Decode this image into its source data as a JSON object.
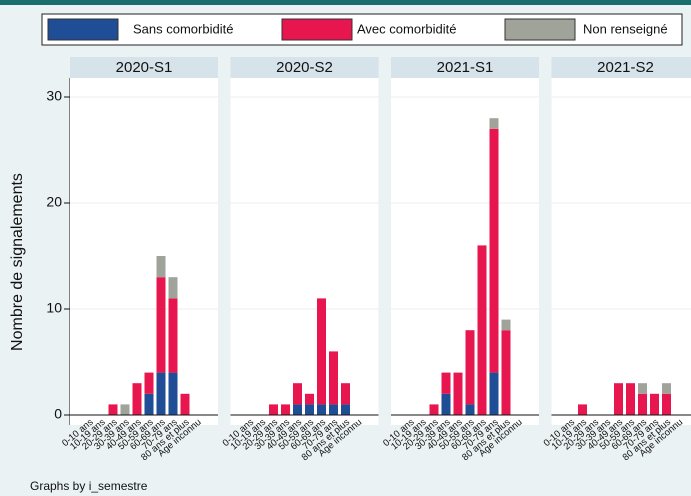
{
  "chart_data": {
    "type": "bar",
    "stacked": true,
    "ylabel": "Nombre de signalements",
    "footnote": "Graphs by i_semestre",
    "categories": [
      "0-10 ans",
      "10-19 ans",
      "20-29 ans",
      "30-39 ans",
      "40-49 ans",
      "50-59 ans",
      "60-69 ans",
      "70-79 ans",
      "80 ans et plus",
      "Age inconnu"
    ],
    "legend": [
      {
        "name": "Sans comorbidité",
        "color": "#1f4e96"
      },
      {
        "name": "Avec comorbidité",
        "color": "#e8164e"
      },
      {
        "name": "Non renseigné",
        "color": "#a0a39a"
      }
    ],
    "ylim": [
      0,
      30
    ],
    "yticks": [
      0,
      10,
      20,
      30
    ],
    "grid": true,
    "panels": [
      {
        "title": "2020-S1",
        "series": [
          [
            0,
            0,
            0,
            0,
            0,
            2,
            4,
            4,
            0,
            0
          ],
          [
            0,
            0,
            1,
            0,
            3,
            2,
            9,
            7,
            2,
            0
          ],
          [
            0,
            0,
            0,
            1,
            0,
            0,
            2,
            2,
            0,
            0
          ]
        ]
      },
      {
        "title": "2020-S2",
        "series": [
          [
            0,
            0,
            0,
            0,
            1,
            1,
            1,
            1,
            1,
            0
          ],
          [
            0,
            0,
            1,
            1,
            2,
            1,
            10,
            5,
            2,
            0
          ],
          [
            0,
            0,
            0,
            0,
            0,
            0,
            0,
            0,
            0,
            0
          ]
        ]
      },
      {
        "title": "2021-S1",
        "series": [
          [
            0,
            0,
            0,
            2,
            0,
            1,
            0,
            4,
            0,
            0
          ],
          [
            0,
            0,
            1,
            2,
            4,
            7,
            16,
            23,
            8,
            0
          ],
          [
            0,
            0,
            0,
            0,
            0,
            0,
            0,
            1,
            1,
            0
          ]
        ]
      },
      {
        "title": "2021-S2",
        "series": [
          [
            0,
            0,
            0,
            0,
            0,
            0,
            0,
            0,
            0,
            0
          ],
          [
            0,
            1,
            0,
            0,
            3,
            3,
            2,
            2,
            2,
            0
          ],
          [
            0,
            0,
            0,
            0,
            0,
            0,
            1,
            0,
            1,
            0
          ]
        ]
      }
    ]
  }
}
